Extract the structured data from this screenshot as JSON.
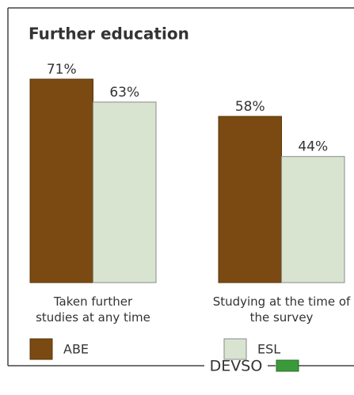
{
  "chart_data": {
    "type": "bar",
    "title": "Further education",
    "categories": [
      "Taken further studies at any time",
      "Studying at the time of the survey"
    ],
    "series": [
      {
        "name": "ABE",
        "color": "#7b4a12",
        "values": [
          71,
          58
        ],
        "value_labels": [
          "71%",
          "58%"
        ]
      },
      {
        "name": "ESL",
        "color": "#d8e4d0",
        "values": [
          63,
          44
        ],
        "value_labels": [
          "63%",
          "44%"
        ]
      }
    ],
    "ylim": [
      0,
      100
    ],
    "footer": "DEVSO"
  }
}
